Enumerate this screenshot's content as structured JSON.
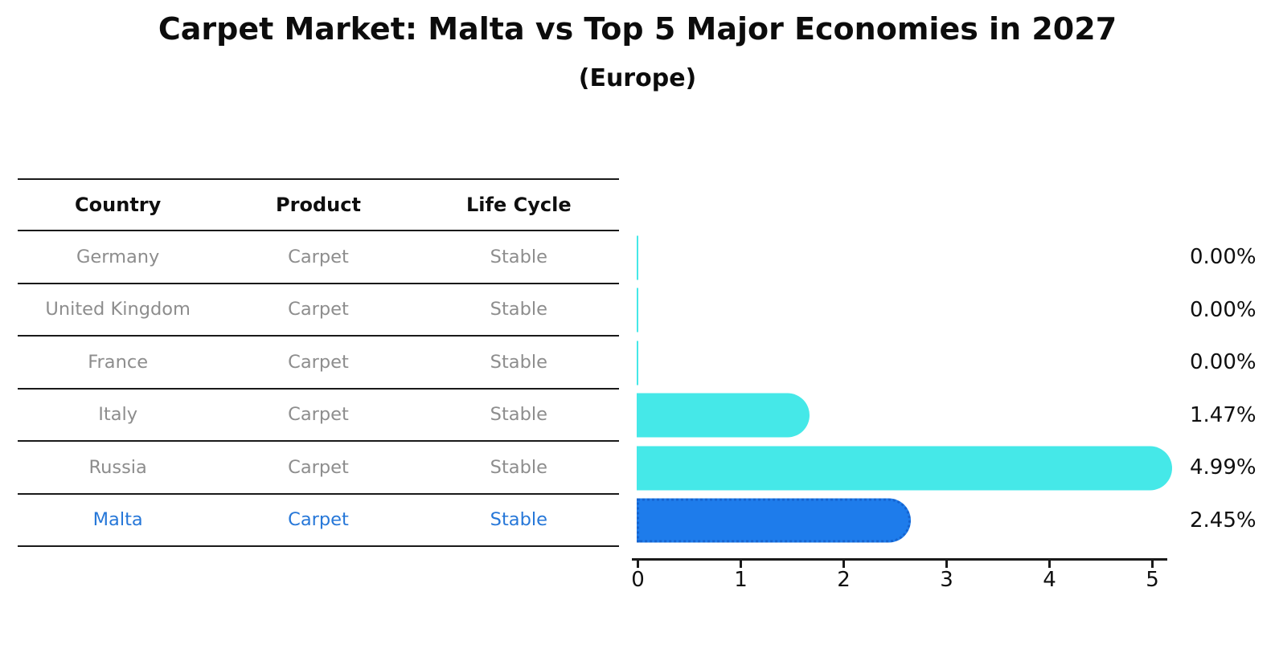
{
  "title": "Carpet Market: Malta vs Top 5 Major Economies in 2027",
  "subtitle": "(Europe)",
  "table": {
    "headers": [
      "Country",
      "Product",
      "Life Cycle"
    ],
    "rows": [
      {
        "country": "Germany",
        "product": "Carpet",
        "life_cycle": "Stable",
        "highlighted": false
      },
      {
        "country": "United Kingdom",
        "product": "Carpet",
        "life_cycle": "Stable",
        "highlighted": false
      },
      {
        "country": "France",
        "product": "Carpet",
        "life_cycle": "Stable",
        "highlighted": false
      },
      {
        "country": "Italy",
        "product": "Carpet",
        "life_cycle": "Stable",
        "highlighted": false
      },
      {
        "country": "Russia",
        "product": "Carpet",
        "life_cycle": "Stable",
        "highlighted": false
      },
      {
        "country": "Malta",
        "product": "Carpet",
        "life_cycle": "Stable",
        "highlighted": true
      }
    ]
  },
  "chart_data": {
    "type": "bar",
    "orientation": "horizontal",
    "categories": [
      "Germany",
      "United Kingdom",
      "France",
      "Italy",
      "Russia",
      "Malta"
    ],
    "values": [
      0.0,
      0.0,
      0.0,
      1.47,
      4.99,
      2.45
    ],
    "value_labels": [
      "0.00%",
      "0.00%",
      "0.00%",
      "1.47%",
      "4.99%",
      "2.45%"
    ],
    "x_ticks": [
      0,
      1,
      2,
      3,
      4,
      5
    ],
    "xlim": [
      0,
      5.2
    ],
    "grid": false,
    "legend": "none",
    "highlight_index": 5,
    "colors": {
      "bar_default": "#45e8e8",
      "bar_highlight": "#1e7ceb",
      "bar_highlight_border": "#1563cf",
      "axis": "#1a1a1a",
      "row_text": "#8d8d8d",
      "highlight_text": "#2677d8"
    }
  }
}
